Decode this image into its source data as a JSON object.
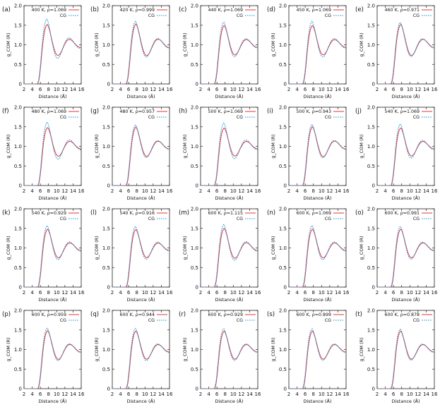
{
  "chart_data": {
    "type": "line",
    "grid": false,
    "legend_placement": "top-right",
    "xlabel": "Distance (Å)",
    "ylabel": "g_COM (R)",
    "xlim": [
      2,
      16
    ],
    "ylim": [
      0,
      2.0
    ],
    "xticks": [
      "2",
      "4",
      "6",
      "8",
      "10",
      "12",
      "14",
      "16"
    ],
    "yticks": [
      "0",
      "0.5",
      "1.0",
      "1.5",
      "2.0"
    ],
    "series_styles": [
      {
        "name": "",
        "color": "#e8343a",
        "dash": "solid"
      },
      {
        "name": "CG",
        "color": "#1f9bd7",
        "dash": "dotted"
      }
    ],
    "panels": [
      {
        "label": "(a)",
        "title": "400 K, ρ=1.069",
        "ref": {
          "peak": 1.52,
          "x0": 7.7
        },
        "cg": {
          "peak": 1.66,
          "x0": 7.6
        }
      },
      {
        "label": "(b)",
        "title": "420 K, ρ=0.999",
        "ref": {
          "peak": 1.53,
          "x0": 7.8
        },
        "cg": {
          "peak": 1.6,
          "x0": 7.7
        }
      },
      {
        "label": "(c)",
        "title": "440 K, ρ=1.069",
        "ref": {
          "peak": 1.49,
          "x0": 7.8
        },
        "cg": {
          "peak": 1.58,
          "x0": 7.7
        }
      },
      {
        "label": "(d)",
        "title": "450 K, ρ=1.069",
        "ref": {
          "peak": 1.49,
          "x0": 7.8
        },
        "cg": {
          "peak": 1.6,
          "x0": 7.7
        }
      },
      {
        "label": "(e)",
        "title": "460 K, ρ=0.971",
        "ref": {
          "peak": 1.52,
          "x0": 7.8
        },
        "cg": {
          "peak": 1.57,
          "x0": 7.7
        }
      },
      {
        "label": "(f)",
        "title": "480 K, ρ=1.069",
        "ref": {
          "peak": 1.48,
          "x0": 7.8
        },
        "cg": {
          "peak": 1.62,
          "x0": 7.7
        }
      },
      {
        "label": "(g)",
        "title": "480 K, ρ=0.957",
        "ref": {
          "peak": 1.49,
          "x0": 7.8
        },
        "cg": {
          "peak": 1.55,
          "x0": 7.7
        }
      },
      {
        "label": "(h)",
        "title": "500 K, ρ=1.069",
        "ref": {
          "peak": 1.47,
          "x0": 7.8
        },
        "cg": {
          "peak": 1.6,
          "x0": 7.7
        }
      },
      {
        "label": "(i)",
        "title": "500 K, ρ=0.943",
        "ref": {
          "peak": 1.5,
          "x0": 7.8
        },
        "cg": {
          "peak": 1.56,
          "x0": 7.7
        }
      },
      {
        "label": "(j)",
        "title": "540 K, ρ=1.069",
        "ref": {
          "peak": 1.47,
          "x0": 7.8
        },
        "cg": {
          "peak": 1.57,
          "x0": 7.7
        }
      },
      {
        "label": "(k)",
        "title": "540 K, ρ=0.929",
        "ref": {
          "peak": 1.48,
          "x0": 7.8
        },
        "cg": {
          "peak": 1.57,
          "x0": 7.7
        }
      },
      {
        "label": "(l)",
        "title": "540 K, ρ=0.916",
        "ref": {
          "peak": 1.47,
          "x0": 7.8
        },
        "cg": {
          "peak": 1.55,
          "x0": 7.7
        }
      },
      {
        "label": "(m)",
        "title": "600 K, ρ=1.115",
        "ref": {
          "peak": 1.5,
          "x0": 7.8
        },
        "cg": {
          "peak": 1.6,
          "x0": 7.7
        }
      },
      {
        "label": "(n)",
        "title": "600 K, ρ=1.069",
        "ref": {
          "peak": 1.48,
          "x0": 7.8
        },
        "cg": {
          "peak": 1.57,
          "x0": 7.7
        }
      },
      {
        "label": "(o)",
        "title": "600 K, ρ=0.991",
        "ref": {
          "peak": 1.48,
          "x0": 7.8
        },
        "cg": {
          "peak": 1.55,
          "x0": 7.7
        }
      },
      {
        "label": "(p)",
        "title": "600 K, ρ=0.959",
        "ref": {
          "peak": 1.48,
          "x0": 7.8
        },
        "cg": {
          "peak": 1.55,
          "x0": 7.7
        }
      },
      {
        "label": "(q)",
        "title": "600 K, ρ=0.944",
        "ref": {
          "peak": 1.47,
          "x0": 7.8
        },
        "cg": {
          "peak": 1.54,
          "x0": 7.7
        }
      },
      {
        "label": "(r)",
        "title": "600 K, ρ=0.929",
        "ref": {
          "peak": 1.47,
          "x0": 7.8
        },
        "cg": {
          "peak": 1.53,
          "x0": 7.7
        }
      },
      {
        "label": "(s)",
        "title": "600 K, ρ=0.899",
        "ref": {
          "peak": 1.47,
          "x0": 7.8
        },
        "cg": {
          "peak": 1.53,
          "x0": 7.7
        }
      },
      {
        "label": "(t)",
        "title": "600 K, ρ=0.878",
        "ref": {
          "peak": 1.47,
          "x0": 7.8
        },
        "cg": {
          "peak": 1.52,
          "x0": 7.7
        }
      }
    ]
  }
}
